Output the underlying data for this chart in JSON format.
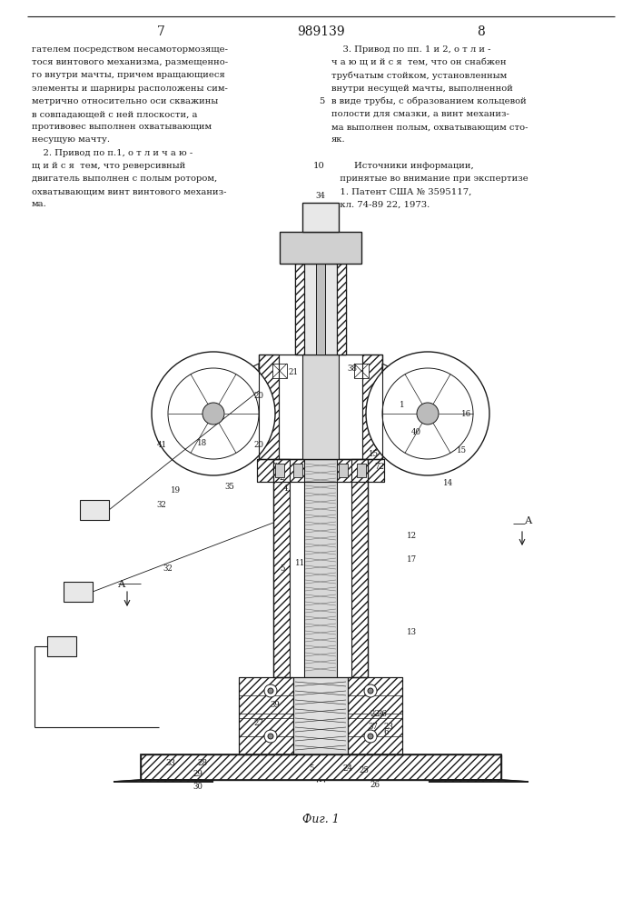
{
  "bg_color": "#ffffff",
  "page_number_left": "7",
  "page_number_center": "989139",
  "page_number_right": "8",
  "figure_caption": "Фиг. 1",
  "line_color": "#1a1a1a",
  "text_color": "#1a1a1a",
  "left_text_lines": [
    "гателем посредством несамотормозяще-",
    "тося винтового механизма, размещенно-",
    "го внутри мачты, причем вращающиеся",
    "элементы и шарниры расположены сим-",
    "метрично относительно оси скважины",
    "в совпадающей с ней плоскости, а",
    "противовес выполнен охватывающим",
    "несущую мачту.",
    "    2. Привод по п.1, о т л и ч а ю -",
    "щ и й с я  тем, что реверсивный",
    "двигатель выполнен с полым ротором,",
    "охватывающим винт винтового механиз-",
    "ма."
  ],
  "right_text_lines": [
    [
      "    3. Привод по пп. 1 и 2, о т л и -",
      null
    ],
    [
      "ч а ю щ и й с я  тем, что он снабжен",
      null
    ],
    [
      "трубчатым стойком, установленным",
      null
    ],
    [
      "внутри несущей мачты, выполненной",
      null
    ],
    [
      "в виде трубы, с образованием кольцевой",
      "5"
    ],
    [
      "полости для смазки, а винт механиз-",
      null
    ],
    [
      "ма выполнен полым, охватывающим сто-",
      null
    ],
    [
      "як.",
      null
    ],
    [
      "",
      null
    ],
    [
      "        Источники информации,",
      "10"
    ],
    [
      "   принятые во внимание при экспертизе",
      null
    ],
    [
      "   1. Патент США № 3595117,",
      null
    ],
    [
      "   кл. 74-89 22, 1973.",
      null
    ]
  ]
}
